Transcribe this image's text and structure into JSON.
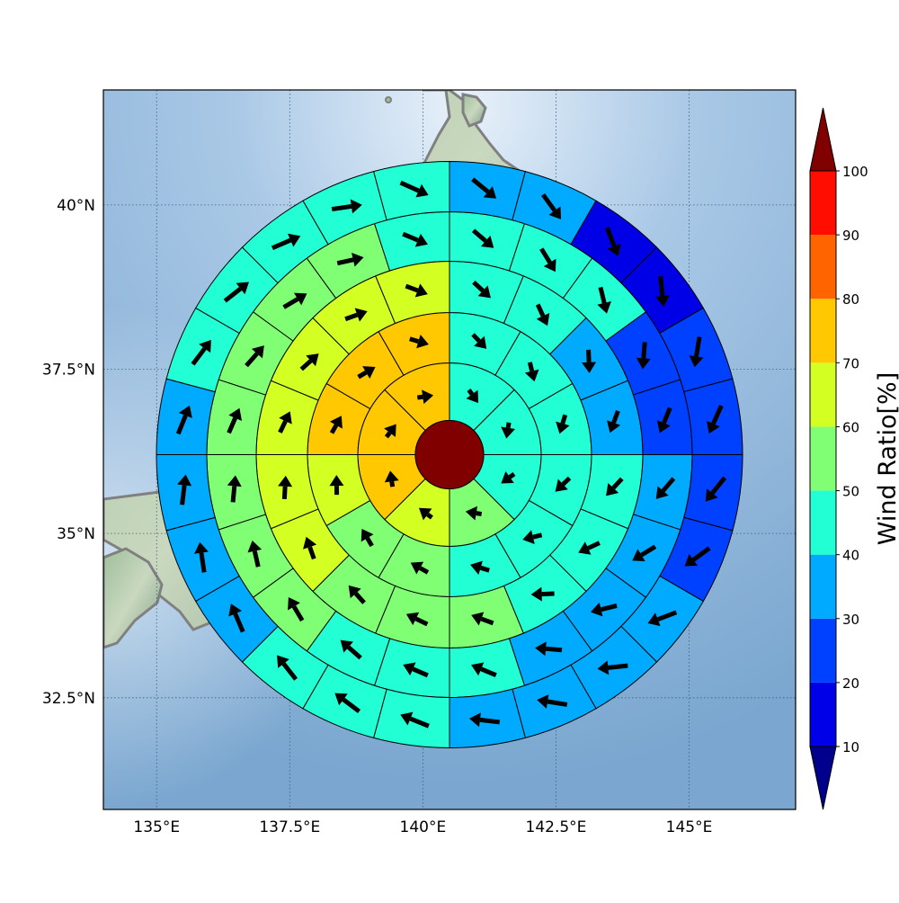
{
  "map": {
    "lon_ticks": [
      {
        "value": 135,
        "label": "135°E"
      },
      {
        "value": 137.5,
        "label": "137.5°E"
      },
      {
        "value": 140,
        "label": "140°E"
      },
      {
        "value": 142.5,
        "label": "142.5°E"
      },
      {
        "value": 145,
        "label": "145°E"
      }
    ],
    "lat_ticks": [
      {
        "value": 40,
        "label": "40°N"
      },
      {
        "value": 37.5,
        "label": "37.5°N"
      },
      {
        "value": 35,
        "label": "35°N"
      },
      {
        "value": 32.5,
        "label": "32.5°N"
      }
    ],
    "lon_range": [
      134.0,
      147.0
    ],
    "lat_range": [
      30.8,
      41.75
    ],
    "grid": true,
    "background": "shaded-relief",
    "coastline_color": "#808080"
  },
  "polar_plot": {
    "center": {
      "lon": 140.5,
      "lat": 36.2
    },
    "center_value": 100,
    "rings": [
      {
        "sectors": 8,
        "values": [
          45,
          45,
          45,
          50,
          60,
          70,
          70,
          70
        ]
      },
      {
        "sectors": 12,
        "values": [
          45,
          45,
          40,
          40,
          40,
          40,
          50,
          50,
          60,
          70,
          70,
          70
        ]
      },
      {
        "sectors": 16,
        "values": [
          40,
          40,
          30,
          30,
          40,
          40,
          40,
          50,
          50,
          50,
          60,
          60,
          60,
          60,
          60,
          60
        ]
      },
      {
        "sectors": 20,
        "values": [
          40,
          40,
          40,
          20,
          20,
          30,
          30,
          30,
          30,
          40,
          40,
          40,
          50,
          50,
          50,
          50,
          50,
          50,
          50,
          40
        ]
      },
      {
        "sectors": 24,
        "values": [
          30,
          30,
          10,
          10,
          20,
          20,
          20,
          20,
          30,
          30,
          30,
          30,
          40,
          40,
          40,
          30,
          30,
          30,
          30,
          40,
          40,
          40,
          40,
          40
        ]
      },
      {
        "sectors": 28,
        "values": [
          30,
          30,
          20,
          10,
          10,
          10,
          20,
          20,
          20,
          20,
          20,
          20,
          30,
          30,
          30,
          30,
          30,
          30,
          30,
          30,
          20,
          40,
          40,
          40,
          40,
          40,
          40,
          40
        ]
      }
    ]
  },
  "colorbar": {
    "label": "Wind Ratio[%]",
    "ticks": [
      "10",
      "20",
      "30",
      "40",
      "50",
      "60",
      "70",
      "80",
      "90",
      "100"
    ],
    "under_color": "#00008c",
    "over_color": "#800000",
    "colors": [
      "#0000e6",
      "#0040ff",
      "#00aaff",
      "#22ffd4",
      "#80ff75",
      "#d4ff22",
      "#ffc800",
      "#ff6400",
      "#ff0d00"
    ]
  }
}
